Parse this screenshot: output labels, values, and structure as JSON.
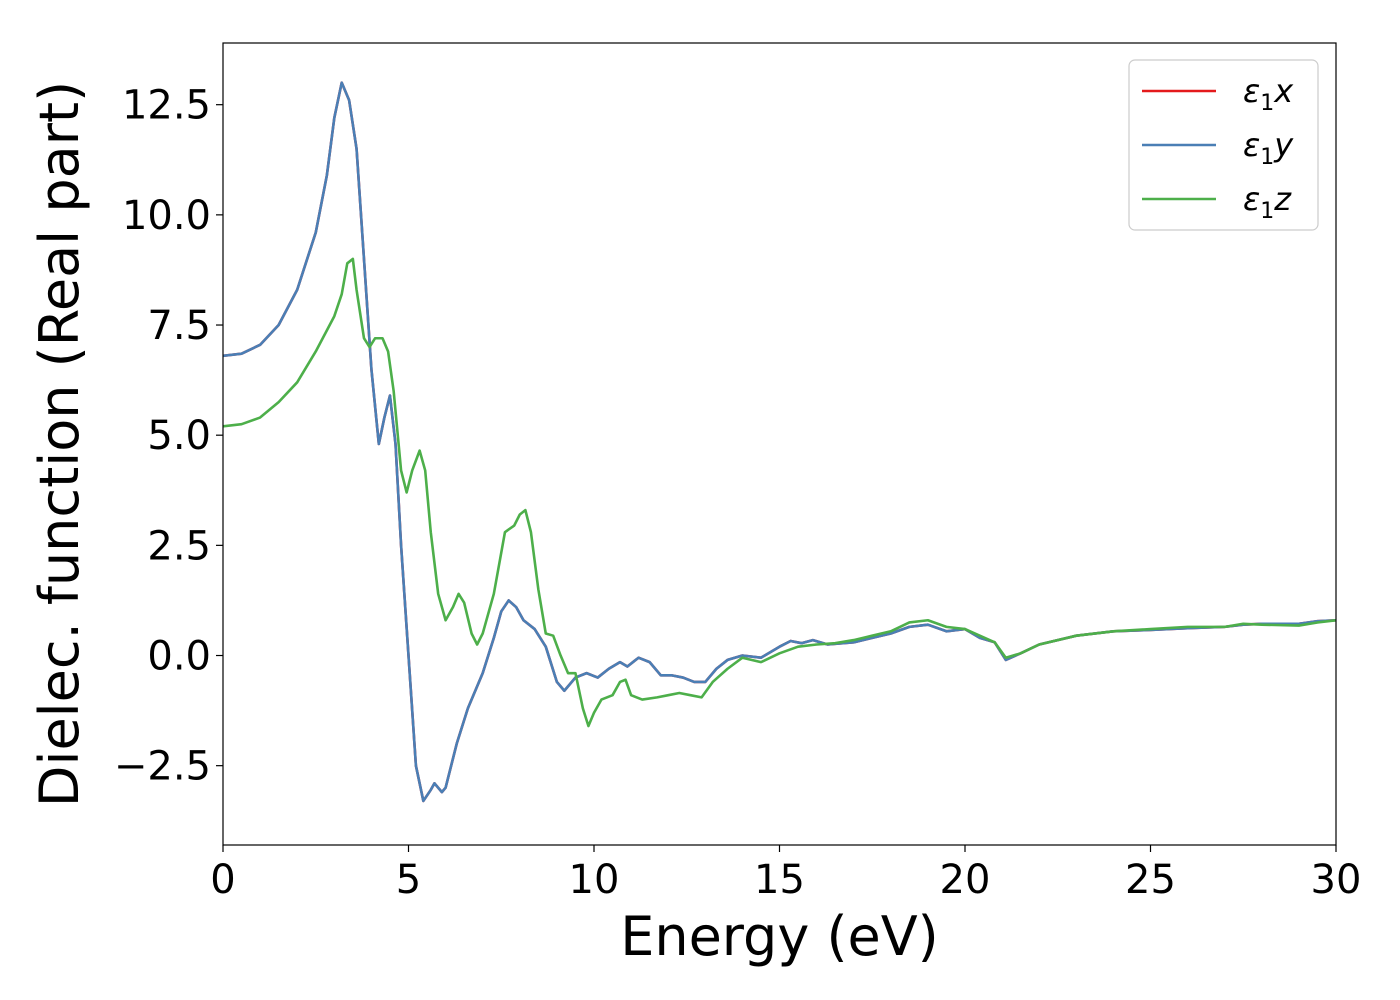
{
  "chart_data": {
    "type": "line",
    "xlabel": "Energy (eV)",
    "ylabel": "Dielec. function (Real part)",
    "xlim": [
      0,
      30
    ],
    "ylim": [
      -4.3,
      13.9
    ],
    "xticks": [
      0,
      5,
      10,
      15,
      20,
      25,
      30
    ],
    "xtick_labels": [
      "0",
      "5",
      "10",
      "15",
      "20",
      "25",
      "30"
    ],
    "yticks": [
      -2.5,
      0,
      2.5,
      5,
      7.5,
      10,
      12.5
    ],
    "ytick_labels": [
      "−2.5",
      "0.0",
      "2.5",
      "5.0",
      "7.5",
      "10.0",
      "12.5"
    ],
    "grid": false,
    "legend_position": "top-right",
    "series": [
      {
        "name": "ε₁x",
        "name_base": "ε",
        "name_sub": "1",
        "name_var": "x",
        "color": "#e41a1c",
        "points": [
          [
            0,
            6.8
          ],
          [
            0.5,
            6.85
          ],
          [
            1,
            7.05
          ],
          [
            1.5,
            7.5
          ],
          [
            2,
            8.3
          ],
          [
            2.5,
            9.6
          ],
          [
            2.8,
            10.9
          ],
          [
            3.0,
            12.2
          ],
          [
            3.2,
            13.0
          ],
          [
            3.4,
            12.6
          ],
          [
            3.6,
            11.5
          ],
          [
            3.8,
            9.0
          ],
          [
            4.0,
            6.5
          ],
          [
            4.2,
            4.8
          ],
          [
            4.35,
            5.4
          ],
          [
            4.5,
            5.9
          ],
          [
            4.65,
            4.8
          ],
          [
            4.8,
            2.5
          ],
          [
            5.0,
            0.0
          ],
          [
            5.2,
            -2.5
          ],
          [
            5.4,
            -3.3
          ],
          [
            5.6,
            -3.05
          ],
          [
            5.7,
            -2.9
          ],
          [
            5.9,
            -3.1
          ],
          [
            6.0,
            -3.0
          ],
          [
            6.3,
            -2.0
          ],
          [
            6.6,
            -1.2
          ],
          [
            7.0,
            -0.4
          ],
          [
            7.3,
            0.4
          ],
          [
            7.5,
            1.0
          ],
          [
            7.7,
            1.25
          ],
          [
            7.9,
            1.1
          ],
          [
            8.1,
            0.8
          ],
          [
            8.4,
            0.6
          ],
          [
            8.7,
            0.2
          ],
          [
            9.0,
            -0.6
          ],
          [
            9.2,
            -0.8
          ],
          [
            9.5,
            -0.5
          ],
          [
            9.8,
            -0.4
          ],
          [
            10.1,
            -0.5
          ],
          [
            10.4,
            -0.3
          ],
          [
            10.7,
            -0.15
          ],
          [
            10.9,
            -0.25
          ],
          [
            11.2,
            -0.05
          ],
          [
            11.5,
            -0.15
          ],
          [
            11.8,
            -0.45
          ],
          [
            12.1,
            -0.45
          ],
          [
            12.4,
            -0.5
          ],
          [
            12.7,
            -0.6
          ],
          [
            13.0,
            -0.6
          ],
          [
            13.3,
            -0.3
          ],
          [
            13.6,
            -0.1
          ],
          [
            14.0,
            0.0
          ],
          [
            14.5,
            -0.05
          ],
          [
            15.0,
            0.2
          ],
          [
            15.3,
            0.33
          ],
          [
            15.6,
            0.28
          ],
          [
            15.9,
            0.35
          ],
          [
            16.3,
            0.25
          ],
          [
            17.0,
            0.3
          ],
          [
            17.5,
            0.4
          ],
          [
            18.0,
            0.5
          ],
          [
            18.5,
            0.65
          ],
          [
            19.0,
            0.7
          ],
          [
            19.5,
            0.55
          ],
          [
            20.0,
            0.6
          ],
          [
            20.4,
            0.4
          ],
          [
            20.8,
            0.3
          ],
          [
            21.1,
            -0.1
          ],
          [
            21.5,
            0.05
          ],
          [
            22.0,
            0.25
          ],
          [
            23.0,
            0.45
          ],
          [
            24.0,
            0.55
          ],
          [
            25.0,
            0.58
          ],
          [
            26.0,
            0.62
          ],
          [
            27.0,
            0.65
          ],
          [
            27.5,
            0.7
          ],
          [
            28.0,
            0.72
          ],
          [
            29.0,
            0.72
          ],
          [
            29.5,
            0.78
          ],
          [
            30.0,
            0.8
          ]
        ]
      },
      {
        "name": "ε₁y",
        "name_base": "ε",
        "name_sub": "1",
        "name_var": "y",
        "color": "#4a7fb5",
        "points": [
          [
            0,
            6.8
          ],
          [
            0.5,
            6.85
          ],
          [
            1,
            7.05
          ],
          [
            1.5,
            7.5
          ],
          [
            2,
            8.3
          ],
          [
            2.5,
            9.6
          ],
          [
            2.8,
            10.9
          ],
          [
            3.0,
            12.2
          ],
          [
            3.2,
            13.0
          ],
          [
            3.4,
            12.6
          ],
          [
            3.6,
            11.5
          ],
          [
            3.8,
            9.0
          ],
          [
            4.0,
            6.5
          ],
          [
            4.2,
            4.8
          ],
          [
            4.35,
            5.4
          ],
          [
            4.5,
            5.9
          ],
          [
            4.65,
            4.8
          ],
          [
            4.8,
            2.5
          ],
          [
            5.0,
            0.0
          ],
          [
            5.2,
            -2.5
          ],
          [
            5.4,
            -3.3
          ],
          [
            5.6,
            -3.05
          ],
          [
            5.7,
            -2.9
          ],
          [
            5.9,
            -3.1
          ],
          [
            6.0,
            -3.0
          ],
          [
            6.3,
            -2.0
          ],
          [
            6.6,
            -1.2
          ],
          [
            7.0,
            -0.4
          ],
          [
            7.3,
            0.4
          ],
          [
            7.5,
            1.0
          ],
          [
            7.7,
            1.25
          ],
          [
            7.9,
            1.1
          ],
          [
            8.1,
            0.8
          ],
          [
            8.4,
            0.6
          ],
          [
            8.7,
            0.2
          ],
          [
            9.0,
            -0.6
          ],
          [
            9.2,
            -0.8
          ],
          [
            9.5,
            -0.5
          ],
          [
            9.8,
            -0.4
          ],
          [
            10.1,
            -0.5
          ],
          [
            10.4,
            -0.3
          ],
          [
            10.7,
            -0.15
          ],
          [
            10.9,
            -0.25
          ],
          [
            11.2,
            -0.05
          ],
          [
            11.5,
            -0.15
          ],
          [
            11.8,
            -0.45
          ],
          [
            12.1,
            -0.45
          ],
          [
            12.4,
            -0.5
          ],
          [
            12.7,
            -0.6
          ],
          [
            13.0,
            -0.6
          ],
          [
            13.3,
            -0.3
          ],
          [
            13.6,
            -0.1
          ],
          [
            14.0,
            0.0
          ],
          [
            14.5,
            -0.05
          ],
          [
            15.0,
            0.2
          ],
          [
            15.3,
            0.33
          ],
          [
            15.6,
            0.28
          ],
          [
            15.9,
            0.35
          ],
          [
            16.3,
            0.25
          ],
          [
            17.0,
            0.3
          ],
          [
            17.5,
            0.4
          ],
          [
            18.0,
            0.5
          ],
          [
            18.5,
            0.65
          ],
          [
            19.0,
            0.7
          ],
          [
            19.5,
            0.55
          ],
          [
            20.0,
            0.6
          ],
          [
            20.4,
            0.4
          ],
          [
            20.8,
            0.3
          ],
          [
            21.1,
            -0.1
          ],
          [
            21.5,
            0.05
          ],
          [
            22.0,
            0.25
          ],
          [
            23.0,
            0.45
          ],
          [
            24.0,
            0.55
          ],
          [
            25.0,
            0.58
          ],
          [
            26.0,
            0.62
          ],
          [
            27.0,
            0.65
          ],
          [
            27.5,
            0.7
          ],
          [
            28.0,
            0.72
          ],
          [
            29.0,
            0.72
          ],
          [
            29.5,
            0.78
          ],
          [
            30.0,
            0.8
          ]
        ]
      },
      {
        "name": "ε₁z",
        "name_base": "ε",
        "name_sub": "1",
        "name_var": "z",
        "color": "#4daf4a",
        "points": [
          [
            0,
            5.2
          ],
          [
            0.5,
            5.25
          ],
          [
            1,
            5.4
          ],
          [
            1.5,
            5.75
          ],
          [
            2,
            6.2
          ],
          [
            2.5,
            6.9
          ],
          [
            3.0,
            7.7
          ],
          [
            3.2,
            8.2
          ],
          [
            3.35,
            8.9
          ],
          [
            3.5,
            9.0
          ],
          [
            3.6,
            8.3
          ],
          [
            3.8,
            7.2
          ],
          [
            3.95,
            7.0
          ],
          [
            4.1,
            7.2
          ],
          [
            4.3,
            7.2
          ],
          [
            4.45,
            6.9
          ],
          [
            4.6,
            6.0
          ],
          [
            4.8,
            4.2
          ],
          [
            4.95,
            3.7
          ],
          [
            5.1,
            4.2
          ],
          [
            5.3,
            4.65
          ],
          [
            5.45,
            4.2
          ],
          [
            5.6,
            2.8
          ],
          [
            5.8,
            1.4
          ],
          [
            6.0,
            0.8
          ],
          [
            6.2,
            1.1
          ],
          [
            6.35,
            1.4
          ],
          [
            6.5,
            1.2
          ],
          [
            6.7,
            0.5
          ],
          [
            6.85,
            0.25
          ],
          [
            7.0,
            0.5
          ],
          [
            7.3,
            1.4
          ],
          [
            7.6,
            2.8
          ],
          [
            7.85,
            2.95
          ],
          [
            8.0,
            3.2
          ],
          [
            8.15,
            3.3
          ],
          [
            8.3,
            2.8
          ],
          [
            8.5,
            1.5
          ],
          [
            8.7,
            0.5
          ],
          [
            8.9,
            0.45
          ],
          [
            9.1,
            0.0
          ],
          [
            9.3,
            -0.4
          ],
          [
            9.5,
            -0.4
          ],
          [
            9.7,
            -1.2
          ],
          [
            9.85,
            -1.6
          ],
          [
            10.0,
            -1.3
          ],
          [
            10.2,
            -1.0
          ],
          [
            10.5,
            -0.9
          ],
          [
            10.7,
            -0.6
          ],
          [
            10.85,
            -0.55
          ],
          [
            11.0,
            -0.9
          ],
          [
            11.3,
            -1.0
          ],
          [
            11.7,
            -0.95
          ],
          [
            12.0,
            -0.9
          ],
          [
            12.3,
            -0.85
          ],
          [
            12.6,
            -0.9
          ],
          [
            12.9,
            -0.95
          ],
          [
            13.2,
            -0.6
          ],
          [
            13.6,
            -0.3
          ],
          [
            14.0,
            -0.05
          ],
          [
            14.5,
            -0.15
          ],
          [
            15.0,
            0.05
          ],
          [
            15.5,
            0.2
          ],
          [
            16.0,
            0.25
          ],
          [
            16.5,
            0.28
          ],
          [
            17.0,
            0.35
          ],
          [
            17.5,
            0.45
          ],
          [
            18.0,
            0.55
          ],
          [
            18.5,
            0.75
          ],
          [
            19.0,
            0.8
          ],
          [
            19.5,
            0.65
          ],
          [
            20.0,
            0.6
          ],
          [
            20.4,
            0.45
          ],
          [
            20.8,
            0.3
          ],
          [
            21.1,
            -0.05
          ],
          [
            21.5,
            0.05
          ],
          [
            22.0,
            0.25
          ],
          [
            23.0,
            0.45
          ],
          [
            24.0,
            0.55
          ],
          [
            25.0,
            0.6
          ],
          [
            26.0,
            0.65
          ],
          [
            27.0,
            0.65
          ],
          [
            27.5,
            0.72
          ],
          [
            28.0,
            0.7
          ],
          [
            29.0,
            0.68
          ],
          [
            29.5,
            0.75
          ],
          [
            30.0,
            0.8
          ]
        ]
      }
    ]
  }
}
